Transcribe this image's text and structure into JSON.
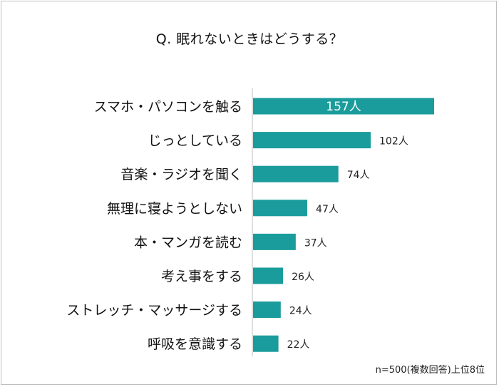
{
  "chart_data": {
    "type": "bar",
    "orientation": "horizontal",
    "title": "Q. 眠れないときはどうする？",
    "categories": [
      "スマホ・パソコンを触る",
      "じっとしている",
      "音楽・ラジオを聞く",
      "無理に寝ようとしない",
      "本・マンガを読む",
      "考え事をする",
      "ストレッチ・マッサージする",
      "呼吸を意識する"
    ],
    "values": [
      157,
      102,
      74,
      47,
      37,
      26,
      24,
      22
    ],
    "value_labels": [
      "157人",
      "102人",
      "74人",
      "47人",
      "37人",
      "26人",
      "24人",
      "22人"
    ],
    "bar_color": "#1a9c9c",
    "note": "n=500(複数回答)上位8位"
  }
}
